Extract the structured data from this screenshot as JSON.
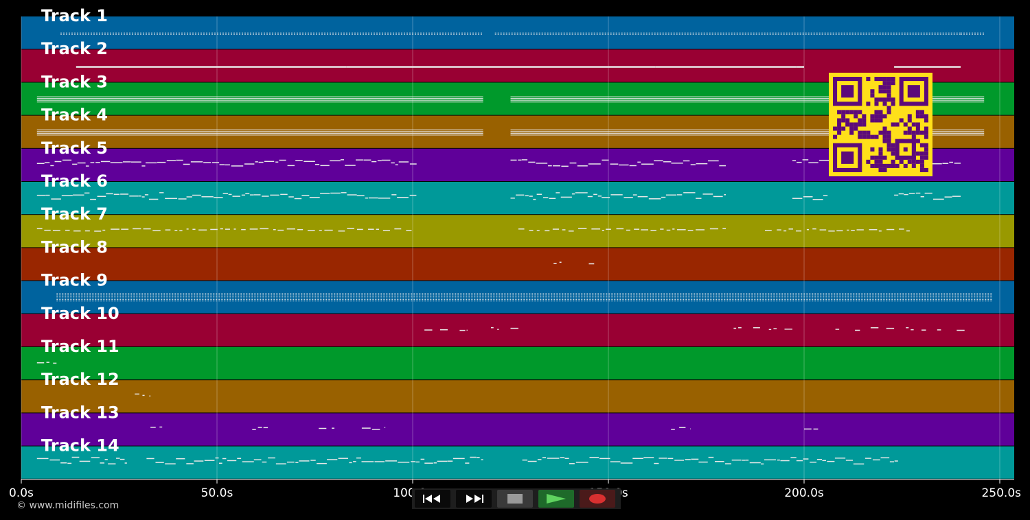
{
  "timeline": {
    "ticks": [
      {
        "value": 0,
        "label": "0.0s"
      },
      {
        "value": 50,
        "label": "50.0s"
      },
      {
        "value": 100,
        "label": "100.0s"
      },
      {
        "value": 150,
        "label": "150.0s"
      },
      {
        "value": 200,
        "label": "200.0s"
      },
      {
        "value": 250,
        "label": "250.0s"
      }
    ],
    "duration_max": 250
  },
  "tracks": [
    {
      "label": "Track 1",
      "color": "#00639e",
      "segments": [
        [
          10,
          118
        ],
        [
          121,
          240
        ],
        [
          240,
          246
        ]
      ],
      "density": "dots"
    },
    {
      "label": "Track 2",
      "color": "#990033",
      "segments": [
        [
          14,
          83
        ],
        [
          83,
          125
        ],
        [
          125,
          162
        ],
        [
          162,
          198
        ],
        [
          198,
          200
        ],
        [
          223,
          240
        ]
      ],
      "density": "line"
    },
    {
      "label": "Track 3",
      "color": "#00992b",
      "segments": [
        [
          4,
          118
        ],
        [
          125,
          246
        ]
      ],
      "density": "dense"
    },
    {
      "label": "Track 4",
      "color": "#996100",
      "segments": [
        [
          4,
          118
        ],
        [
          125,
          246
        ]
      ],
      "density": "dense"
    },
    {
      "label": "Track 5",
      "color": "#5f0099",
      "segments": [
        [
          4,
          101
        ],
        [
          125,
          180
        ],
        [
          197,
          240
        ]
      ],
      "density": "melody"
    },
    {
      "label": "Track 6",
      "color": "#009999",
      "segments": [
        [
          4,
          101
        ],
        [
          125,
          180
        ],
        [
          197,
          206
        ],
        [
          223,
          240
        ]
      ],
      "density": "melody"
    },
    {
      "label": "Track 7",
      "color": "#999900",
      "segments": [
        [
          4,
          100
        ],
        [
          127,
          180
        ],
        [
          190,
          227
        ]
      ],
      "density": "sparse"
    },
    {
      "label": "Track 8",
      "color": "#992600",
      "segments": [
        [
          136,
          138
        ],
        [
          145,
          147
        ]
      ],
      "density": "sparse"
    },
    {
      "label": "Track 9",
      "color": "#00639e",
      "segments": [
        [
          9,
          248
        ]
      ],
      "density": "dots"
    },
    {
      "label": "Track 10",
      "color": "#990033",
      "segments": [
        [
          103,
          105
        ],
        [
          107,
          109
        ],
        [
          112,
          114
        ],
        [
          120,
          122
        ],
        [
          125,
          127
        ],
        [
          182,
          184
        ],
        [
          187,
          189
        ],
        [
          191,
          193
        ],
        [
          195,
          197
        ],
        [
          208,
          210
        ],
        [
          213,
          215
        ],
        [
          217,
          219
        ],
        [
          221,
          223
        ],
        [
          226,
          228
        ],
        [
          230,
          232
        ],
        [
          234,
          236
        ],
        [
          239,
          241
        ]
      ],
      "density": "sparse"
    },
    {
      "label": "Track 11",
      "color": "#00992b",
      "segments": [
        [
          4,
          9
        ]
      ],
      "density": "sparse"
    },
    {
      "label": "Track 12",
      "color": "#996100",
      "segments": [
        [
          29,
          33
        ]
      ],
      "density": "sparse"
    },
    {
      "label": "Track 13",
      "color": "#5f0099",
      "segments": [
        [
          33,
          36
        ],
        [
          59,
          63
        ],
        [
          76,
          80
        ],
        [
          87,
          93
        ],
        [
          166,
          171
        ],
        [
          200,
          204
        ]
      ],
      "density": "sparse"
    },
    {
      "label": "Track 14",
      "color": "#009999",
      "segments": [
        [
          4,
          27
        ],
        [
          32,
          118
        ],
        [
          128,
          224
        ]
      ],
      "density": "melody"
    }
  ],
  "transport": {
    "rewind": "rewind",
    "fast_forward": "fast-forward",
    "stop": "stop",
    "play": "play",
    "record": "record"
  },
  "copyright": "© www.midifiles.com",
  "colors": {
    "qr_fg": "#5c0a7a",
    "qr_bg": "#ffe01a",
    "play_arrow": "#5fd35f",
    "record_dot": "#d93030",
    "stop_square": "#9a9a9a"
  }
}
